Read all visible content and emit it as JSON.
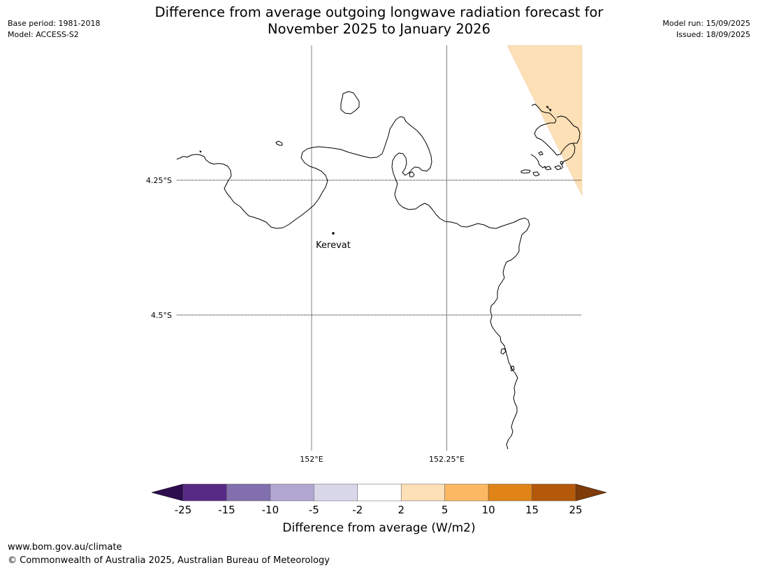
{
  "header": {
    "base_period": "Base period: 1981-2018",
    "model": "Model: ACCESS-S2",
    "model_run": "Model run: 15/09/2025",
    "issued": "Issued: 18/09/2025",
    "title_line1": "Difference from average outgoing longwave radiation forecast for",
    "title_line2": "November 2025 to January 2026"
  },
  "map": {
    "latitude_lines": [
      "4.25°S",
      "4.5°S"
    ],
    "longitude_lines": [
      "152°E",
      "152.25°E"
    ],
    "places": [
      {
        "name": "Kerevat"
      }
    ],
    "shaded_region_category": "2 to 5",
    "shaded_region_color": "#fde0b6",
    "coastline_color": "#000000",
    "gridline_color": "#808080"
  },
  "colorbar": {
    "label": "Difference from average (W/m2)",
    "ticks": [
      "-25",
      "-15",
      "-10",
      "-5",
      "-2",
      "2",
      "5",
      "10",
      "15",
      "25"
    ],
    "colors": [
      "#572a86",
      "#8270ae",
      "#b1a7d2",
      "#d9d8eb",
      "#ffffff",
      "#fde0b6",
      "#fcb863",
      "#e08417",
      "#b35909"
    ],
    "under_color": "#2e0d4f",
    "over_color": "#7f3b08"
  },
  "footer": {
    "url": "www.bom.gov.au/climate",
    "copyright": "© Commonwealth of Australia 2025, Australian Bureau of Meteorology"
  }
}
